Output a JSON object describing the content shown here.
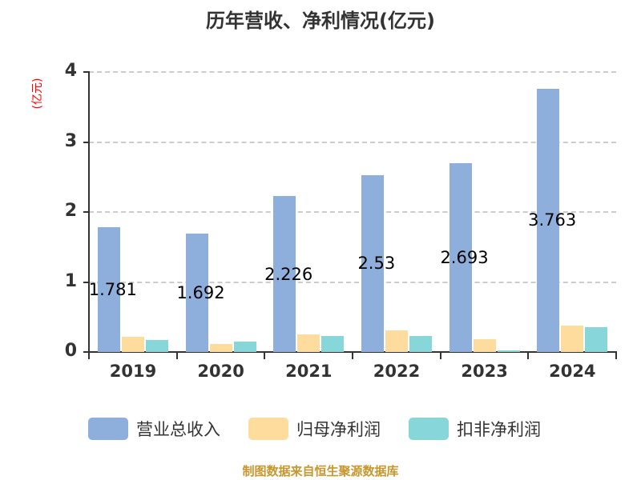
{
  "title": "历年营收、净利情况(亿元)",
  "y_axis_label": "(亿元)",
  "footer": "制图数据来自恒生聚源数据库",
  "colors": {
    "营业总收入": "#8eaedc",
    "归母净利润": "#fedc9e",
    "扣非净利润": "#87d6d9",
    "ylabel": "#ff0000",
    "footer": "#c8962c"
  },
  "y_ticks": [
    "0",
    "1",
    "2",
    "3",
    "4"
  ],
  "x_ticks": [
    "2019",
    "2020",
    "2021",
    "2022",
    "2023",
    "2024"
  ],
  "legend": [
    {
      "label": "营业总收入",
      "color": "#8eaedc"
    },
    {
      "label": "归母净利润",
      "color": "#fedc9e"
    },
    {
      "label": "扣非净利润",
      "color": "#87d6d9"
    }
  ],
  "data_labels": [
    "1.781",
    "1.692",
    "2.226",
    "2.53",
    "2.693",
    "3.763"
  ],
  "chart_data": {
    "type": "bar",
    "title": "历年营收、净利情况(亿元)",
    "xlabel": "",
    "ylabel": "(亿元)",
    "ylim": [
      0,
      4
    ],
    "grid": true,
    "legend_position": "bottom",
    "categories": [
      "2019",
      "2020",
      "2021",
      "2022",
      "2023",
      "2024"
    ],
    "series": [
      {
        "name": "营业总收入",
        "values": [
          1.781,
          1.692,
          2.226,
          2.53,
          2.693,
          3.763
        ],
        "labeled": true
      },
      {
        "name": "归母净利润",
        "values": [
          0.22,
          0.11,
          0.25,
          0.31,
          0.18,
          0.38
        ]
      },
      {
        "name": "扣非净利润",
        "values": [
          0.17,
          0.15,
          0.23,
          0.23,
          0.02,
          0.35
        ]
      }
    ],
    "annotations": [
      "1.781",
      "1.692",
      "2.226",
      "2.53",
      "2.693",
      "3.763"
    ],
    "source_note": "制图数据来自恒生聚源数据库"
  }
}
